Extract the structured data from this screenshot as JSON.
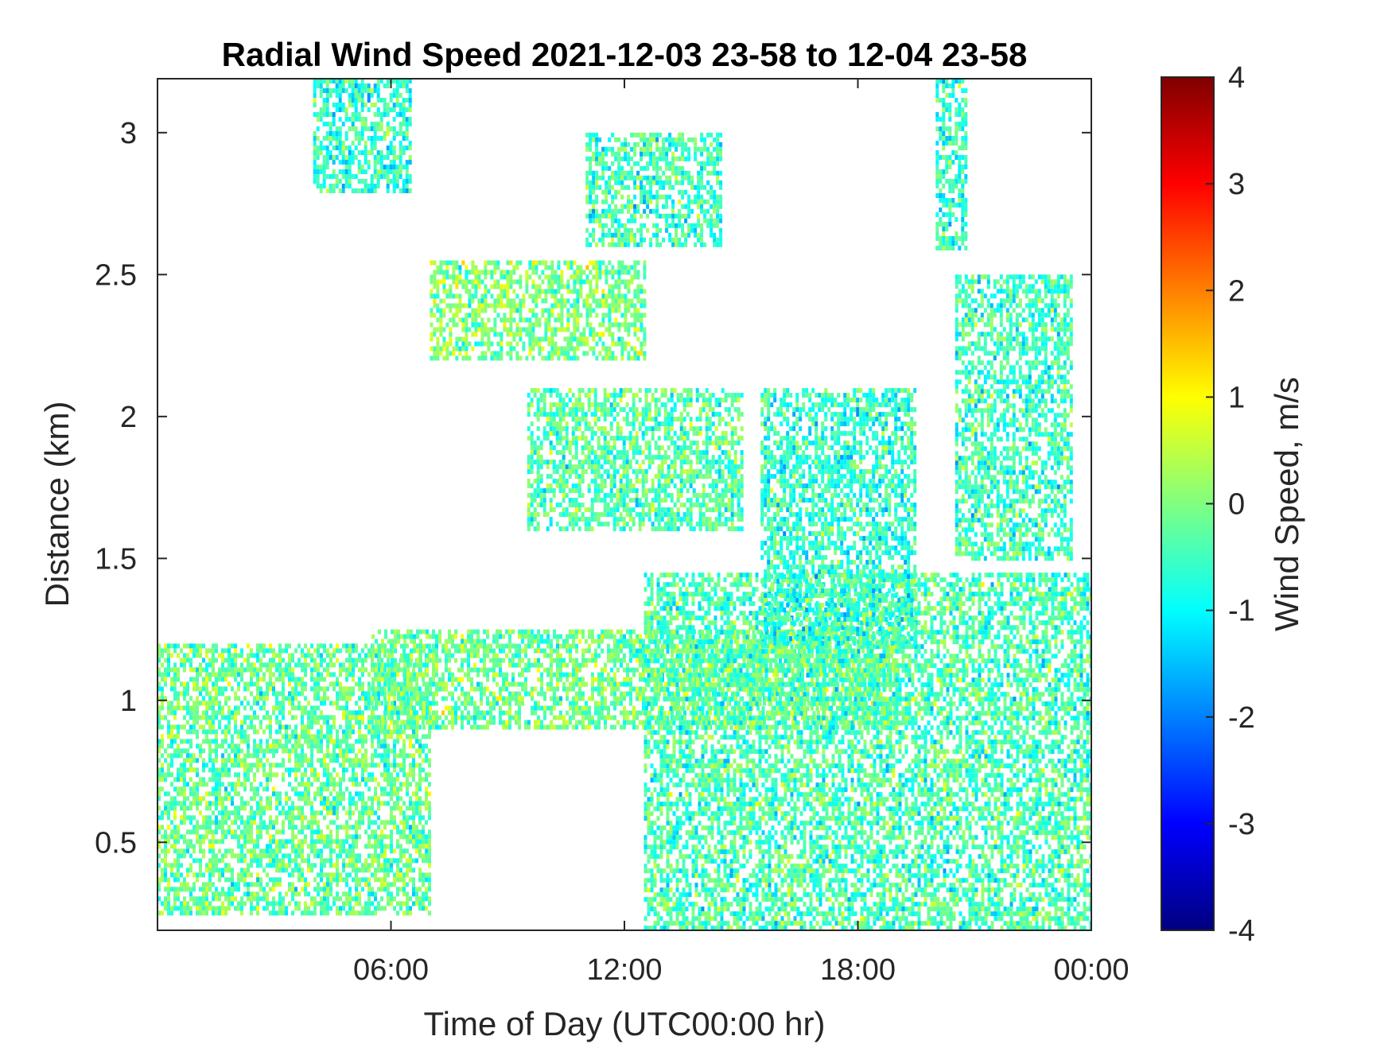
{
  "chart_data": {
    "type": "heatmap",
    "title": "Radial Wind Speed 2021-12-03 23-58 to 12-04 23-58",
    "xlabel": "Time of Day (UTC00:00 hr)",
    "ylabel": "Distance (km)",
    "x_unit": "hour of day",
    "x_ticks": [
      {
        "value": 6,
        "label": "06:00"
      },
      {
        "value": 12,
        "label": "12:00"
      },
      {
        "value": 18,
        "label": "18:00"
      },
      {
        "value": 24,
        "label": "00:00"
      }
    ],
    "xlim": [
      0,
      24
    ],
    "y_ticks": [
      {
        "value": 0.5,
        "label": "0.5"
      },
      {
        "value": 1,
        "label": "1"
      },
      {
        "value": 1.5,
        "label": "1.5"
      },
      {
        "value": 2,
        "label": "2"
      },
      {
        "value": 2.5,
        "label": "2.5"
      },
      {
        "value": 3,
        "label": "3"
      }
    ],
    "ylim": [
      0.19,
      3.19
    ],
    "colorbar": {
      "label": "Wind Speed, m/s",
      "range": [
        -4,
        4
      ],
      "colormap": "jet",
      "ticks": [
        {
          "value": 4,
          "label": "4"
        },
        {
          "value": 3,
          "label": "3"
        },
        {
          "value": 2,
          "label": "2"
        },
        {
          "value": 1,
          "label": "1"
        },
        {
          "value": 0,
          "label": "0"
        },
        {
          "value": -1,
          "label": "-1"
        },
        {
          "value": -2,
          "label": "-2"
        },
        {
          "value": -3,
          "label": "-3"
        },
        {
          "value": -4,
          "label": "-4"
        }
      ],
      "position": "right"
    },
    "regions": [
      {
        "x": [
          0,
          7
        ],
        "y": [
          0.25,
          1.2
        ],
        "mean_value": -0.2
      },
      {
        "x": [
          5.5,
          19
        ],
        "y": [
          0.9,
          1.25
        ],
        "mean_value": -0.1
      },
      {
        "x": [
          12.5,
          24
        ],
        "y": [
          0.19,
          1.45
        ],
        "mean_value": -0.4
      },
      {
        "x": [
          7,
          12.5
        ],
        "y": [
          2.2,
          2.55
        ],
        "mean_value": 0.0
      },
      {
        "x": [
          9.5,
          15
        ],
        "y": [
          1.6,
          2.1
        ],
        "mean_value": -0.3
      },
      {
        "x": [
          11,
          14.5
        ],
        "y": [
          2.6,
          3.0
        ],
        "mean_value": -0.5
      },
      {
        "x": [
          15.5,
          19.5
        ],
        "y": [
          1.2,
          2.1
        ],
        "mean_value": -0.6
      },
      {
        "x": [
          20.5,
          23.5
        ],
        "y": [
          1.5,
          2.5
        ],
        "mean_value": -0.5
      },
      {
        "x": [
          4,
          6.5
        ],
        "y": [
          2.8,
          3.19
        ],
        "mean_value": -0.6
      },
      {
        "x": [
          20,
          20.8
        ],
        "y": [
          2.6,
          3.19
        ],
        "mean_value": -0.6
      }
    ],
    "grid": false
  }
}
